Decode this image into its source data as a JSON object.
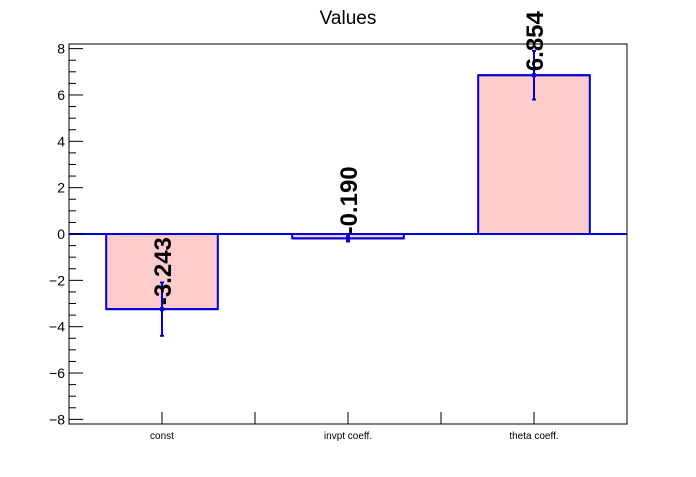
{
  "chart_data": {
    "type": "bar",
    "title": "Values",
    "xlabel": "",
    "ylabel": "",
    "categories": [
      "const",
      "invpt coeff.",
      "theta coeff."
    ],
    "values": [
      -3.243,
      -0.19,
      6.854
    ],
    "errors": [
      1.15,
      0.13,
      1.05
    ],
    "data_labels": [
      "-3.243",
      "-0.190",
      "6.854"
    ],
    "ylim": [
      -8.2,
      8.2
    ],
    "yticks": [
      -8,
      -6,
      -4,
      -2,
      0,
      2,
      4,
      6,
      8
    ],
    "ytick_labels": [
      "−8",
      "−6",
      "−4",
      "−2",
      "0",
      "2",
      "4",
      "6",
      "8"
    ],
    "grid": false,
    "legend": "none",
    "colors": {
      "bar_fill": "#ffcccc",
      "bar_edge": "#0000dd",
      "axis": "#000000",
      "zero_line": "#0000dd"
    }
  }
}
